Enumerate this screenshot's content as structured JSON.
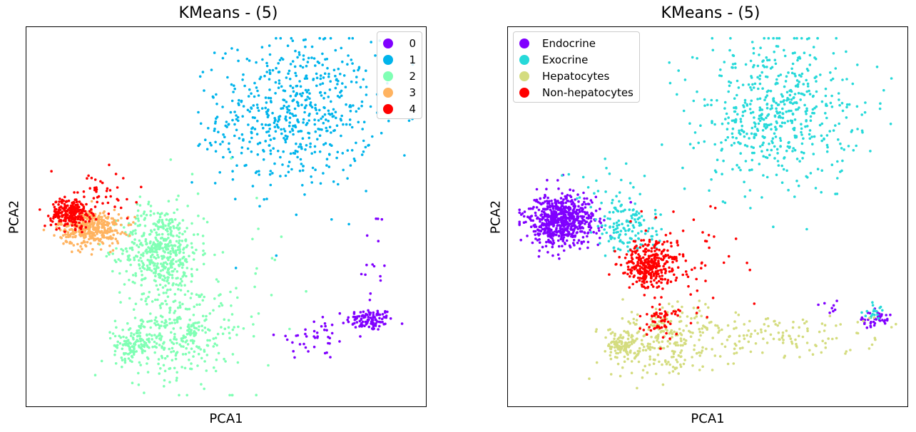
{
  "chart_data": [
    {
      "type": "scatter",
      "title": "KMeans - (5)",
      "xlabel": "PCA1",
      "ylabel": "PCA2",
      "xticks": "none",
      "yticks": "none",
      "grid": false,
      "legend_position": "top-right",
      "series": [
        {
          "name": "0",
          "color": "#8000ff",
          "clusters": [
            {
              "cx": 0.87,
              "cy": 0.22,
              "sx": 0.03,
              "sy": 0.015,
              "n": 110
            },
            {
              "cx": 0.73,
              "cy": 0.17,
              "sx": 0.05,
              "sy": 0.03,
              "n": 40
            },
            {
              "cx": 0.88,
              "cy": 0.38,
              "sx": 0.02,
              "sy": 0.08,
              "n": 15
            }
          ]
        },
        {
          "name": "1",
          "color": "#00b4eb",
          "clusters": [
            {
              "cx": 0.68,
              "cy": 0.78,
              "sx": 0.1,
              "sy": 0.1,
              "n": 560
            },
            {
              "cx": 0.5,
              "cy": 0.72,
              "sx": 0.05,
              "sy": 0.06,
              "n": 20
            }
          ]
        },
        {
          "name": "2",
          "color": "#80ffb4",
          "clusters": [
            {
              "cx": 0.33,
              "cy": 0.41,
              "sx": 0.05,
              "sy": 0.06,
              "n": 480
            },
            {
              "cx": 0.26,
              "cy": 0.15,
              "sx": 0.025,
              "sy": 0.02,
              "n": 100
            },
            {
              "cx": 0.37,
              "cy": 0.18,
              "sx": 0.07,
              "sy": 0.06,
              "n": 300
            },
            {
              "cx": 0.45,
              "cy": 0.3,
              "sx": 0.1,
              "sy": 0.15,
              "n": 80
            }
          ]
        },
        {
          "name": "3",
          "color": "#ffb360",
          "clusters": [
            {
              "cx": 0.15,
              "cy": 0.47,
              "sx": 0.04,
              "sy": 0.025,
              "n": 420
            }
          ]
        },
        {
          "name": "4",
          "color": "#ff0000",
          "clusters": [
            {
              "cx": 0.1,
              "cy": 0.51,
              "sx": 0.025,
              "sy": 0.02,
              "n": 240
            },
            {
              "cx": 0.18,
              "cy": 0.56,
              "sx": 0.06,
              "sy": 0.04,
              "n": 40
            }
          ]
        }
      ]
    },
    {
      "type": "scatter",
      "title": "KMeans - (5)",
      "xlabel": "PCA1",
      "ylabel": "PCA2",
      "xticks": "none",
      "yticks": "none",
      "grid": false,
      "legend_position": "top-left",
      "series": [
        {
          "name": "Endocrine",
          "color": "#8000ff",
          "clusters": [
            {
              "cx": 0.12,
              "cy": 0.49,
              "sx": 0.045,
              "sy": 0.035,
              "n": 650
            },
            {
              "cx": 0.93,
              "cy": 0.22,
              "sx": 0.025,
              "sy": 0.012,
              "n": 40
            },
            {
              "cx": 0.82,
              "cy": 0.25,
              "sx": 0.02,
              "sy": 0.015,
              "n": 8
            }
          ]
        },
        {
          "name": "Exocrine",
          "color": "#26d9d9",
          "clusters": [
            {
              "cx": 0.68,
              "cy": 0.78,
              "sx": 0.1,
              "sy": 0.1,
              "n": 560
            },
            {
              "cx": 0.3,
              "cy": 0.47,
              "sx": 0.04,
              "sy": 0.035,
              "n": 130
            },
            {
              "cx": 0.24,
              "cy": 0.56,
              "sx": 0.06,
              "sy": 0.05,
              "n": 30
            },
            {
              "cx": 0.93,
              "cy": 0.24,
              "sx": 0.015,
              "sy": 0.01,
              "n": 20
            }
          ]
        },
        {
          "name": "Hepatocytes",
          "color": "#d4dc7f",
          "clusters": [
            {
              "cx": 0.28,
              "cy": 0.15,
              "sx": 0.025,
              "sy": 0.02,
              "n": 110
            },
            {
              "cx": 0.4,
              "cy": 0.16,
              "sx": 0.07,
              "sy": 0.05,
              "n": 250
            },
            {
              "cx": 0.7,
              "cy": 0.18,
              "sx": 0.13,
              "sy": 0.03,
              "n": 120
            }
          ]
        },
        {
          "name": "Non-hepatocytes",
          "color": "#ff0000",
          "clusters": [
            {
              "cx": 0.35,
              "cy": 0.37,
              "sx": 0.035,
              "sy": 0.03,
              "n": 320
            },
            {
              "cx": 0.38,
              "cy": 0.22,
              "sx": 0.025,
              "sy": 0.025,
              "n": 60
            },
            {
              "cx": 0.45,
              "cy": 0.38,
              "sx": 0.08,
              "sy": 0.08,
              "n": 60
            }
          ]
        }
      ]
    }
  ]
}
